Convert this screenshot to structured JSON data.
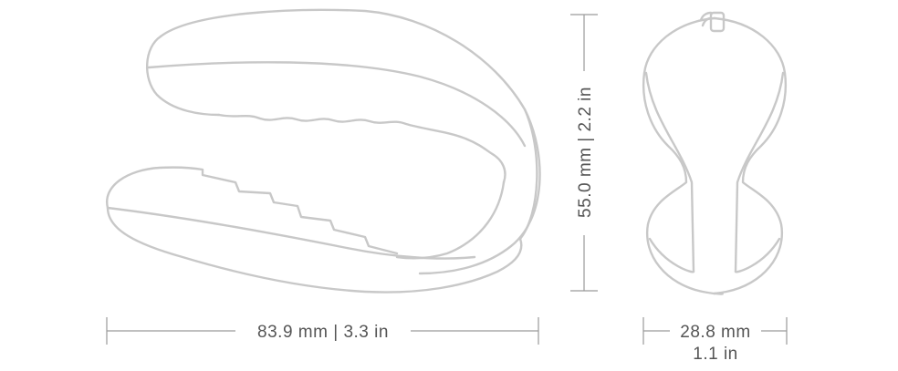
{
  "dimensions": {
    "width_label": "83.9 mm | 3.3 in",
    "height_label": "55.0 mm | 2.2 in",
    "depth_label_mm": "28.8 mm",
    "depth_label_in": "1.1 in"
  },
  "colors": {
    "outline": "#c8c8c8",
    "dimension_line": "#9a9a9a",
    "label": "#555555"
  }
}
